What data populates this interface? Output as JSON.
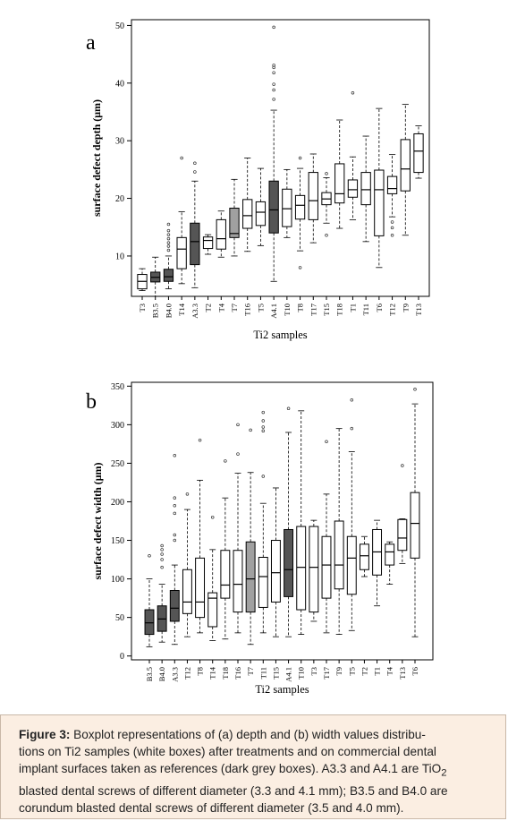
{
  "chart_data": [
    {
      "type": "box",
      "panel_letter": "a",
      "xlabel": "Ti2 samples",
      "ylabel": "surface defect depth (μm)",
      "ylim": [
        3,
        51
      ],
      "yticks": [
        10,
        20,
        30,
        40,
        50
      ],
      "colors": {
        "sample": "#ffffff",
        "reference": "#555555",
        "light_reference": "#a0a0a0"
      },
      "boxes": [
        {
          "label": "T3",
          "q1": 4.3,
          "median": 5.6,
          "q3": 6.8,
          "wlo": 4.0,
          "whi": 7.8,
          "outliers": [],
          "fill": "sample"
        },
        {
          "label": "B3.5",
          "q1": 5.5,
          "median": 6.3,
          "q3": 7.2,
          "wlo": 3.0,
          "whi": 9.8,
          "outliers": [],
          "fill": "reference"
        },
        {
          "label": "B4.0",
          "q1": 5.6,
          "median": 6.4,
          "q3": 7.7,
          "wlo": 4.3,
          "whi": 10.0,
          "outliers": [
            11.0,
            11.7,
            12.3,
            13.0,
            13.7,
            14.4,
            15.5
          ],
          "fill": "reference"
        },
        {
          "label": "T14",
          "q1": 7.8,
          "median": 11.2,
          "q3": 13.2,
          "wlo": 5.2,
          "whi": 17.7,
          "outliers": [
            27.0
          ],
          "fill": "sample"
        },
        {
          "label": "A3.3",
          "q1": 8.5,
          "median": 12.5,
          "q3": 15.7,
          "wlo": 4.5,
          "whi": 23.0,
          "outliers": [
            24.6,
            26.1
          ],
          "fill": "reference"
        },
        {
          "label": "T2",
          "q1": 11.3,
          "median": 12.7,
          "q3": 13.3,
          "wlo": 10.3,
          "whi": 13.7,
          "outliers": [],
          "fill": "sample"
        },
        {
          "label": "T4",
          "q1": 11.2,
          "median": 13.0,
          "q3": 16.3,
          "wlo": 9.8,
          "whi": 17.8,
          "outliers": [],
          "fill": "sample"
        },
        {
          "label": "T7",
          "q1": 13.2,
          "median": 13.9,
          "q3": 18.3,
          "wlo": 10.0,
          "whi": 23.3,
          "outliers": [],
          "fill": "light_reference"
        },
        {
          "label": "T16",
          "q1": 14.8,
          "median": 17.0,
          "q3": 19.8,
          "wlo": 10.8,
          "whi": 27.0,
          "outliers": [],
          "fill": "sample"
        },
        {
          "label": "T5",
          "q1": 15.3,
          "median": 17.6,
          "q3": 19.4,
          "wlo": 11.8,
          "whi": 25.2,
          "outliers": [],
          "fill": "sample"
        },
        {
          "label": "A4.1",
          "q1": 14.0,
          "median": 18.0,
          "q3": 23.0,
          "wlo": 5.6,
          "whi": 35.3,
          "outliers": [
            37.2,
            38.8,
            39.8,
            41.8,
            42.7,
            43.1,
            49.7
          ],
          "fill": "reference"
        },
        {
          "label": "T10",
          "q1": 15.1,
          "median": 18.2,
          "q3": 21.6,
          "wlo": 13.2,
          "whi": 25.0,
          "outliers": [],
          "fill": "sample"
        },
        {
          "label": "T8",
          "q1": 16.4,
          "median": 18.8,
          "q3": 20.5,
          "wlo": 10.9,
          "whi": 25.2,
          "outliers": [
            8.0,
            27.0
          ],
          "fill": "sample"
        },
        {
          "label": "T17",
          "q1": 16.3,
          "median": 19.6,
          "q3": 24.5,
          "wlo": 12.3,
          "whi": 27.7,
          "outliers": [],
          "fill": "sample"
        },
        {
          "label": "T15",
          "q1": 18.9,
          "median": 19.9,
          "q3": 21.0,
          "wlo": 15.7,
          "whi": 23.6,
          "outliers": [
            13.6,
            24.3
          ],
          "fill": "sample"
        },
        {
          "label": "T18",
          "q1": 19.2,
          "median": 20.8,
          "q3": 26.0,
          "wlo": 14.8,
          "whi": 33.6,
          "outliers": [],
          "fill": "sample"
        },
        {
          "label": "T1",
          "q1": 20.2,
          "median": 21.5,
          "q3": 23.2,
          "wlo": 16.3,
          "whi": 27.2,
          "outliers": [
            38.3
          ],
          "fill": "sample"
        },
        {
          "label": "T11",
          "q1": 18.9,
          "median": 21.5,
          "q3": 24.5,
          "wlo": 12.5,
          "whi": 30.8,
          "outliers": [],
          "fill": "sample"
        },
        {
          "label": "T6",
          "q1": 13.5,
          "median": 21.5,
          "q3": 24.9,
          "wlo": 8.0,
          "whi": 35.6,
          "outliers": [],
          "fill": "sample"
        },
        {
          "label": "T12",
          "q1": 20.8,
          "median": 21.7,
          "q3": 23.8,
          "wlo": 16.8,
          "whi": 27.6,
          "outliers": [
            13.6,
            14.9,
            15.9
          ],
          "fill": "sample"
        },
        {
          "label": "T9",
          "q1": 21.3,
          "median": 25.1,
          "q3": 30.2,
          "wlo": 13.6,
          "whi": 36.3,
          "outliers": [],
          "fill": "sample"
        },
        {
          "label": "T13",
          "q1": 24.5,
          "median": 28.2,
          "q3": 31.2,
          "wlo": 23.5,
          "whi": 32.6,
          "outliers": [],
          "fill": "sample"
        }
      ]
    },
    {
      "type": "box",
      "panel_letter": "b",
      "xlabel": "Ti2 samples",
      "ylabel": "surface defect width (μm)",
      "ylim": [
        -5,
        355
      ],
      "yticks": [
        0,
        50,
        100,
        150,
        200,
        250,
        300,
        350
      ],
      "colors": {
        "sample": "#ffffff",
        "reference": "#555555",
        "light_reference": "#a0a0a0"
      },
      "boxes": [
        {
          "label": "B3.5",
          "q1": 28,
          "median": 43,
          "q3": 60,
          "wlo": 12,
          "whi": 100,
          "outliers": [
            130
          ],
          "fill": "reference"
        },
        {
          "label": "B4.0",
          "q1": 32,
          "median": 48,
          "q3": 65,
          "wlo": 18,
          "whi": 93,
          "outliers": [
            115,
            125,
            132,
            138,
            143
          ],
          "fill": "reference"
        },
        {
          "label": "A3.3",
          "q1": 45,
          "median": 62,
          "q3": 85,
          "wlo": 15,
          "whi": 118,
          "outliers": [
            150,
            157,
            185,
            195,
            205,
            260
          ],
          "fill": "reference"
        },
        {
          "label": "T12",
          "q1": 55,
          "median": 70,
          "q3": 112,
          "wlo": 25,
          "whi": 190,
          "outliers": [
            210
          ],
          "fill": "sample"
        },
        {
          "label": "T8",
          "q1": 50,
          "median": 70,
          "q3": 127,
          "wlo": 30,
          "whi": 228,
          "outliers": [
            280
          ],
          "fill": "sample"
        },
        {
          "label": "T14",
          "q1": 38,
          "median": 75,
          "q3": 82,
          "wlo": 20,
          "whi": 138,
          "outliers": [
            180
          ],
          "fill": "sample"
        },
        {
          "label": "T18",
          "q1": 75,
          "median": 92,
          "q3": 137,
          "wlo": 22,
          "whi": 205,
          "outliers": [
            253
          ],
          "fill": "sample"
        },
        {
          "label": "T16",
          "q1": 57,
          "median": 93,
          "q3": 137,
          "wlo": 30,
          "whi": 237,
          "outliers": [
            262,
            300
          ],
          "fill": "sample"
        },
        {
          "label": "T7",
          "q1": 57,
          "median": 100,
          "q3": 148,
          "wlo": 15,
          "whi": 238,
          "outliers": [
            293
          ],
          "fill": "light_reference"
        },
        {
          "label": "T11",
          "q1": 63,
          "median": 103,
          "q3": 128,
          "wlo": 30,
          "whi": 198,
          "outliers": [
            233,
            292,
            297,
            305,
            316
          ],
          "fill": "sample"
        },
        {
          "label": "T15",
          "q1": 70,
          "median": 108,
          "q3": 150,
          "wlo": 25,
          "whi": 218,
          "outliers": [],
          "fill": "sample"
        },
        {
          "label": "A4.1",
          "q1": 77,
          "median": 112,
          "q3": 164,
          "wlo": 25,
          "whi": 290,
          "outliers": [
            321
          ],
          "fill": "reference"
        },
        {
          "label": "T10",
          "q1": 60,
          "median": 115,
          "q3": 168,
          "wlo": 28,
          "whi": 318,
          "outliers": [],
          "fill": "sample"
        },
        {
          "label": "T3",
          "q1": 57,
          "median": 115,
          "q3": 168,
          "wlo": 45,
          "whi": 176,
          "outliers": [],
          "fill": "sample"
        },
        {
          "label": "T17",
          "q1": 75,
          "median": 118,
          "q3": 155,
          "wlo": 30,
          "whi": 210,
          "outliers": [
            278
          ],
          "fill": "sample"
        },
        {
          "label": "T9",
          "q1": 87,
          "median": 118,
          "q3": 175,
          "wlo": 28,
          "whi": 295,
          "outliers": [],
          "fill": "sample"
        },
        {
          "label": "T5",
          "q1": 80,
          "median": 127,
          "q3": 155,
          "wlo": 33,
          "whi": 265,
          "outliers": [
            295,
            332
          ],
          "fill": "sample"
        },
        {
          "label": "T2",
          "q1": 112,
          "median": 130,
          "q3": 145,
          "wlo": 103,
          "whi": 155,
          "outliers": [],
          "fill": "sample"
        },
        {
          "label": "T1",
          "q1": 105,
          "median": 135,
          "q3": 164,
          "wlo": 65,
          "whi": 176,
          "outliers": [],
          "fill": "sample"
        },
        {
          "label": "T4",
          "q1": 118,
          "median": 135,
          "q3": 145,
          "wlo": 93,
          "whi": 148,
          "outliers": [],
          "fill": "sample"
        },
        {
          "label": "T13",
          "q1": 137,
          "median": 153,
          "q3": 177,
          "wlo": 120,
          "whi": 178,
          "outliers": [
            247
          ],
          "fill": "sample"
        },
        {
          "label": "T6",
          "q1": 127,
          "median": 172,
          "q3": 212,
          "wlo": 25,
          "whi": 327,
          "outliers": [
            346
          ],
          "fill": "sample"
        }
      ]
    }
  ],
  "caption": {
    "label": "Figure 3:",
    "line1": " Boxplot representations of (a) depth and (b) width values distribu-",
    "line2": "tions on Ti2 samples (white boxes) after treatments and on commercial dental",
    "line3_pre": "implant surfaces taken as references (dark grey boxes). A3.3 and A4.1 are TiO",
    "line3_sub": "2",
    "line4": "blasted dental screws of different diameter (3.3 and 4.1 mm); B3.5 and B4.0 are",
    "line5": "corundum blasted dental screws of different diameter (3.5 and 4.0 mm)."
  }
}
